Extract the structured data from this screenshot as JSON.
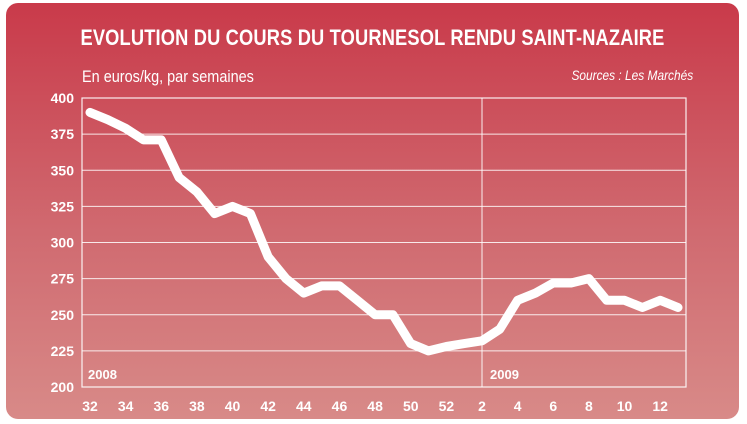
{
  "title": "EVOLUTION DU COURS DU TOURNESOL RENDU SAINT-NAZAIRE",
  "subtitle": "En euros/kg, par semaines",
  "source": "Sources : Les Marchés",
  "colors": {
    "background_top": "#c93a4a",
    "background_bottom": "#d88a88",
    "line": "#ffffff",
    "grid": "#ffffff"
  },
  "chart_data": {
    "type": "line",
    "title": "EVOLUTION DU COURS DU TOURNESOL RENDU SAINT-NAZAIRE",
    "ylabel": "En euros/kg, par semaines",
    "ylim": [
      200,
      400
    ],
    "yticks": [
      200,
      225,
      250,
      275,
      300,
      325,
      350,
      375,
      400
    ],
    "grid": true,
    "x_tick_labels": [
      "32",
      "34",
      "36",
      "38",
      "40",
      "42",
      "44",
      "46",
      "48",
      "50",
      "52",
      "2",
      "4",
      "6",
      "8",
      "10",
      "12"
    ],
    "year_markers": [
      {
        "label": "2008",
        "at_index": 0
      },
      {
        "label": "2009",
        "at_index": 22
      }
    ],
    "series": [
      {
        "values": [
          390,
          385,
          379,
          371,
          371,
          345,
          335,
          320,
          325,
          320,
          290,
          275,
          265,
          270,
          270,
          260,
          250,
          250,
          230,
          225,
          228,
          230,
          232,
          240,
          260,
          265,
          272,
          272,
          275,
          260,
          260,
          255,
          260,
          255
        ]
      }
    ]
  }
}
